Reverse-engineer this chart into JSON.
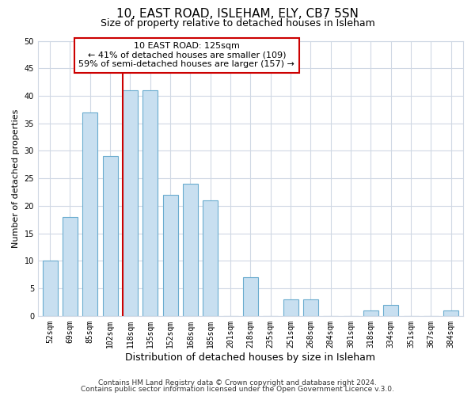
{
  "title": "10, EAST ROAD, ISLEHAM, ELY, CB7 5SN",
  "subtitle": "Size of property relative to detached houses in Isleham",
  "xlabel": "Distribution of detached houses by size in Isleham",
  "ylabel": "Number of detached properties",
  "bar_labels": [
    "52sqm",
    "69sqm",
    "85sqm",
    "102sqm",
    "118sqm",
    "135sqm",
    "152sqm",
    "168sqm",
    "185sqm",
    "201sqm",
    "218sqm",
    "235sqm",
    "251sqm",
    "268sqm",
    "284sqm",
    "301sqm",
    "318sqm",
    "334sqm",
    "351sqm",
    "367sqm",
    "384sqm"
  ],
  "bar_values": [
    10,
    18,
    37,
    29,
    41,
    41,
    22,
    24,
    21,
    0,
    7,
    0,
    3,
    3,
    0,
    0,
    1,
    2,
    0,
    0,
    1
  ],
  "bar_color": "#c8dff0",
  "bar_edgecolor": "#6aaccf",
  "highlight_index": 4,
  "highlight_color": "#cc0000",
  "ylim": [
    0,
    50
  ],
  "yticks": [
    0,
    5,
    10,
    15,
    20,
    25,
    30,
    35,
    40,
    45,
    50
  ],
  "annotation_title": "10 EAST ROAD: 125sqm",
  "annotation_line1": "← 41% of detached houses are smaller (109)",
  "annotation_line2": "59% of semi-detached houses are larger (157) →",
  "footer1": "Contains HM Land Registry data © Crown copyright and database right 2024.",
  "footer2": "Contains public sector information licensed under the Open Government Licence v.3.0.",
  "title_fontsize": 11,
  "subtitle_fontsize": 9,
  "xlabel_fontsize": 9,
  "ylabel_fontsize": 8,
  "tick_fontsize": 7,
  "annotation_fontsize": 8,
  "footer_fontsize": 6.5,
  "background_color": "#ffffff",
  "grid_color": "#d0d8e4",
  "bar_width": 0.75
}
